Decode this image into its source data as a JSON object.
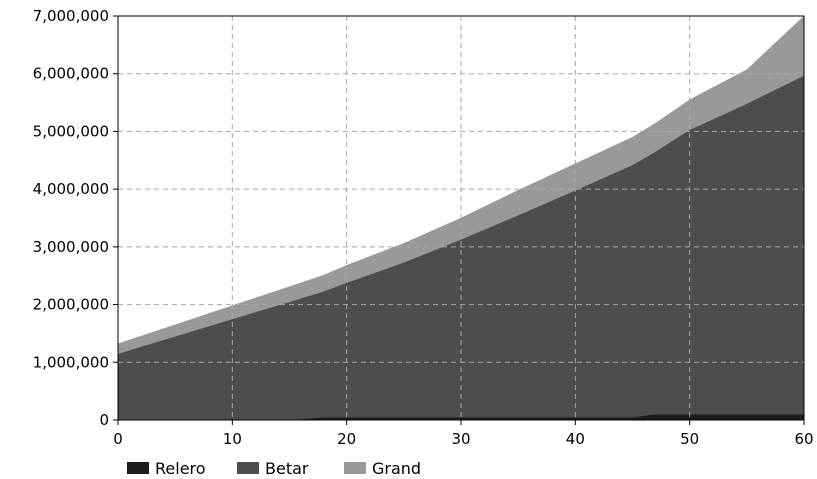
{
  "chart_data": {
    "type": "area",
    "stacked": true,
    "x": [
      0,
      5,
      10,
      15,
      18,
      20,
      25,
      30,
      35,
      40,
      45,
      47,
      50,
      55,
      60
    ],
    "series": [
      {
        "name": "Relero",
        "color": "#1c1c1c",
        "values": [
          0,
          0,
          0,
          0,
          50000,
          50000,
          50000,
          50000,
          50000,
          50000,
          50000,
          100000,
          100000,
          100000,
          100000
        ]
      },
      {
        "name": "Betar",
        "color": "#4d4d4d",
        "values": [
          1150000,
          1450000,
          1750000,
          2050000,
          2180000,
          2330000,
          2680000,
          3080000,
          3500000,
          3930000,
          4370000,
          4550000,
          4930000,
          5380000,
          5870000
        ]
      },
      {
        "name": "Grand",
        "color": "#999999",
        "values": [
          170000,
          200000,
          230000,
          260000,
          280000,
          300000,
          330000,
          370000,
          430000,
          460000,
          480000,
          490000,
          520000,
          590000,
          1030000
        ]
      }
    ],
    "xlim": [
      0,
      60
    ],
    "ylim": [
      0,
      7000000
    ],
    "xticks": [
      "0",
      "10",
      "20",
      "30",
      "40",
      "50",
      "60"
    ],
    "yticks": [
      "0",
      "1,000,000",
      "2,000,000",
      "3,000,000",
      "4,000,000",
      "5,000,000",
      "6,000,000",
      "7,000,000"
    ],
    "grid": true,
    "legend": "bottom-left"
  }
}
